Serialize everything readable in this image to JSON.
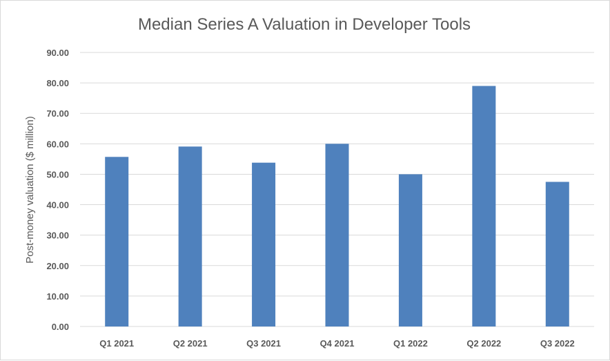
{
  "chart_data": {
    "type": "bar",
    "title": "Median Series A Valuation in Developer Tools",
    "xlabel": "",
    "ylabel": "Post-money valuation ($ million)",
    "categories": [
      "Q1 2021",
      "Q2 2021",
      "Q3 2021",
      "Q4 2021",
      "Q1 2022",
      "Q2 2022",
      "Q3 2022"
    ],
    "values": [
      55.7,
      59.1,
      53.8,
      60.0,
      50.0,
      79.0,
      47.5
    ],
    "ylim": [
      0,
      90
    ],
    "yticks": [
      "0.00",
      "10.00",
      "20.00",
      "30.00",
      "40.00",
      "50.00",
      "60.00",
      "70.00",
      "80.00",
      "90.00"
    ],
    "grid": true,
    "legend": "none",
    "bar_color": "#4f81bd"
  }
}
